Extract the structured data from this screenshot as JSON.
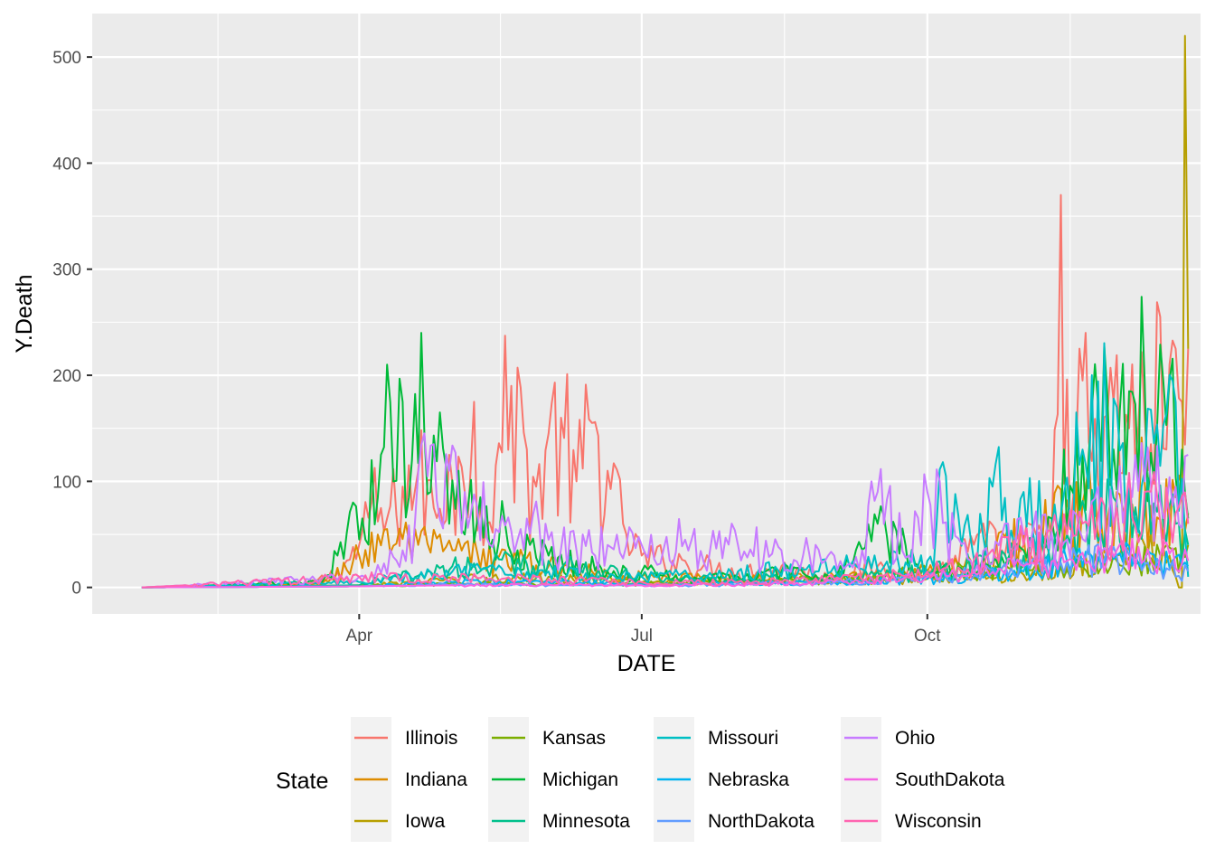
{
  "chart_data": {
    "type": "line",
    "xlabel": "DATE",
    "ylabel": "Y.Death",
    "x_ticks": [
      {
        "label": "Apr",
        "date": "2020-04-01"
      },
      {
        "label": "Jul",
        "date": "2020-07-01"
      },
      {
        "label": "Oct",
        "date": "2020-10-01"
      }
    ],
    "y_ticks": [
      0,
      100,
      200,
      300,
      400,
      500
    ],
    "xlim": [
      "2020-01-06",
      "2020-12-28"
    ],
    "ylim": [
      -25,
      541
    ],
    "x_start": "2020-01-22",
    "grid": true,
    "legend": {
      "title": "State",
      "position": "bottom",
      "entries": [
        "Illinois",
        "Indiana",
        "Iowa",
        "Kansas",
        "Michigan",
        "Minnesota",
        "Missouri",
        "Nebraska",
        "NorthDakota",
        "Ohio",
        "SouthDakota",
        "Wisconsin"
      ]
    },
    "colors": {
      "Illinois": "#F8766D",
      "Indiana": "#DE8C00",
      "Iowa": "#B79F00",
      "Kansas": "#7CAE00",
      "Michigan": "#00BA38",
      "Minnesota": "#00C08B",
      "Missouri": "#00BFC4",
      "Nebraska": "#00B4F0",
      "NorthDakota": "#619CFF",
      "Ohio": "#C77CFF",
      "SouthDakota": "#F564E3",
      "Wisconsin": "#FF64B0"
    },
    "series": [
      {
        "name": "Illinois",
        "x": [
          "2020-01-22",
          "2020-03-15",
          "2020-03-25",
          "2020-04-01",
          "2020-04-05",
          "2020-04-10",
          "2020-04-15",
          "2020-04-20",
          "2020-04-25",
          "2020-04-30",
          "2020-05-05",
          "2020-05-08",
          "2020-05-12",
          "2020-05-15",
          "2020-05-20",
          "2020-05-25",
          "2020-05-28",
          "2020-06-01",
          "2020-06-05",
          "2020-06-10",
          "2020-06-15",
          "2020-06-20",
          "2020-06-25",
          "2020-07-01",
          "2020-07-15",
          "2020-08-01",
          "2020-08-15",
          "2020-09-01",
          "2020-09-15",
          "2020-10-01",
          "2020-10-10",
          "2020-10-20",
          "2020-10-25",
          "2020-11-01",
          "2020-11-05",
          "2020-11-10",
          "2020-11-13",
          "2020-11-16",
          "2020-11-20",
          "2020-11-25",
          "2020-11-30",
          "2020-12-05",
          "2020-12-10",
          "2020-12-12",
          "2020-12-15",
          "2020-12-17",
          "2020-12-20",
          "2020-12-22",
          "2020-12-24"
        ],
        "y": [
          0,
          2,
          15,
          40,
          80,
          65,
          95,
          110,
          75,
          125,
          90,
          175,
          60,
          115,
          190,
          130,
          95,
          145,
          160,
          100,
          155,
          110,
          60,
          30,
          25,
          15,
          20,
          10,
          20,
          12,
          30,
          45,
          35,
          40,
          50,
          45,
          370,
          55,
          195,
          100,
          175,
          150,
          160,
          135,
          255,
          130,
          225,
          175,
          225
        ]
      },
      {
        "name": "Indiana",
        "x": [
          "2020-01-22",
          "2020-03-20",
          "2020-04-01",
          "2020-04-10",
          "2020-04-20",
          "2020-05-01",
          "2020-05-15",
          "2020-06-01",
          "2020-06-15",
          "2020-07-01",
          "2020-08-01",
          "2020-09-01",
          "2020-10-01",
          "2020-10-15",
          "2020-11-01",
          "2020-11-10",
          "2020-11-20",
          "2020-12-01",
          "2020-12-10",
          "2020-12-20",
          "2020-12-24"
        ],
        "y": [
          0,
          3,
          30,
          55,
          40,
          35,
          30,
          20,
          15,
          10,
          8,
          10,
          15,
          25,
          50,
          60,
          80,
          90,
          100,
          85,
          70
        ]
      },
      {
        "name": "Iowa",
        "x": [
          "2020-01-22",
          "2020-04-01",
          "2020-05-01",
          "2020-06-01",
          "2020-07-01",
          "2020-08-01",
          "2020-09-01",
          "2020-10-01",
          "2020-11-01",
          "2020-11-15",
          "2020-12-01",
          "2020-12-10",
          "2020-12-18",
          "2020-12-20",
          "2020-12-21",
          "2020-12-22",
          "2020-12-23",
          "2020-12-24"
        ],
        "y": [
          0,
          2,
          8,
          10,
          5,
          6,
          8,
          8,
          12,
          20,
          30,
          40,
          30,
          10,
          0,
          0,
          520,
          225
        ]
      },
      {
        "name": "Kansas",
        "x": [
          "2020-01-22",
          "2020-04-01",
          "2020-05-01",
          "2020-06-01",
          "2020-07-01",
          "2020-08-01",
          "2020-09-01",
          "2020-10-01",
          "2020-11-01",
          "2020-12-01",
          "2020-12-15",
          "2020-12-24"
        ],
        "y": [
          0,
          1,
          4,
          3,
          4,
          6,
          8,
          15,
          20,
          25,
          30,
          40
        ]
      },
      {
        "name": "Michigan",
        "x": [
          "2020-01-22",
          "2020-03-20",
          "2020-03-25",
          "2020-03-30",
          "2020-04-02",
          "2020-04-05",
          "2020-04-08",
          "2020-04-10",
          "2020-04-12",
          "2020-04-15",
          "2020-04-18",
          "2020-04-21",
          "2020-04-24",
          "2020-04-27",
          "2020-04-30",
          "2020-05-03",
          "2020-05-06",
          "2020-05-10",
          "2020-05-14",
          "2020-05-18",
          "2020-05-22",
          "2020-05-26",
          "2020-06-01",
          "2020-06-10",
          "2020-06-20",
          "2020-07-01",
          "2020-07-15",
          "2020-08-01",
          "2020-08-15",
          "2020-09-01",
          "2020-09-15",
          "2020-10-01",
          "2020-10-15",
          "2020-11-01",
          "2020-11-10",
          "2020-11-20",
          "2020-11-28",
          "2020-12-05",
          "2020-12-10",
          "2020-12-14",
          "2020-12-18",
          "2020-12-22",
          "2020-12-24"
        ],
        "y": [
          0,
          5,
          30,
          80,
          65,
          120,
          125,
          210,
          100,
          175,
          120,
          240,
          90,
          165,
          60,
          110,
          75,
          85,
          45,
          60,
          35,
          40,
          30,
          25,
          15,
          15,
          10,
          10,
          15,
          10,
          60,
          15,
          20,
          35,
          65,
          125,
          180,
          185,
          195,
          150,
          195,
          130,
          65
        ]
      },
      {
        "name": "Minnesota",
        "x": [
          "2020-01-22",
          "2020-04-01",
          "2020-05-01",
          "2020-06-01",
          "2020-07-01",
          "2020-08-01",
          "2020-09-01",
          "2020-10-01",
          "2020-11-01",
          "2020-11-15",
          "2020-12-01",
          "2020-12-10",
          "2020-12-20",
          "2020-12-24"
        ],
        "y": [
          0,
          2,
          20,
          25,
          10,
          8,
          10,
          15,
          30,
          50,
          80,
          70,
          60,
          40
        ]
      },
      {
        "name": "Missouri",
        "x": [
          "2020-01-22",
          "2020-04-01",
          "2020-05-01",
          "2020-06-01",
          "2020-07-01",
          "2020-08-01",
          "2020-09-01",
          "2020-10-01",
          "2020-10-07",
          "2020-10-15",
          "2020-10-22",
          "2020-11-01",
          "2020-11-10",
          "2020-11-20",
          "2020-12-01",
          "2020-12-10",
          "2020-12-20",
          "2020-12-24"
        ],
        "y": [
          0,
          5,
          15,
          15,
          10,
          15,
          20,
          25,
          105,
          45,
          95,
          90,
          55,
          130,
          170,
          110,
          175,
          10
        ]
      },
      {
        "name": "Nebraska",
        "x": [
          "2020-01-22",
          "2020-04-01",
          "2020-05-01",
          "2020-06-01",
          "2020-07-01",
          "2020-08-01",
          "2020-09-01",
          "2020-10-01",
          "2020-11-01",
          "2020-11-15",
          "2020-12-01",
          "2020-12-15",
          "2020-12-24"
        ],
        "y": [
          0,
          1,
          5,
          5,
          3,
          4,
          5,
          8,
          15,
          25,
          30,
          25,
          20
        ]
      },
      {
        "name": "NorthDakota",
        "x": [
          "2020-01-22",
          "2020-04-01",
          "2020-05-01",
          "2020-06-01",
          "2020-07-01",
          "2020-08-01",
          "2020-09-01",
          "2020-10-01",
          "2020-11-01",
          "2020-11-15",
          "2020-12-01",
          "2020-12-15",
          "2020-12-24"
        ],
        "y": [
          0,
          1,
          3,
          2,
          2,
          3,
          5,
          10,
          20,
          25,
          30,
          20,
          15
        ]
      },
      {
        "name": "Ohio",
        "x": [
          "2020-01-22",
          "2020-04-01",
          "2020-04-15",
          "2020-04-25",
          "2020-05-05",
          "2020-05-15",
          "2020-05-25",
          "2020-06-01",
          "2020-06-10",
          "2020-06-20",
          "2020-07-01",
          "2020-07-15",
          "2020-08-01",
          "2020-08-15",
          "2020-09-01",
          "2020-09-10",
          "2020-09-15",
          "2020-09-25",
          "2020-10-01",
          "2020-10-15",
          "2020-11-01",
          "2020-11-15",
          "2020-12-01",
          "2020-12-10",
          "2020-12-20",
          "2020-12-24"
        ],
        "y": [
          0,
          10,
          35,
          135,
          90,
          55,
          65,
          45,
          35,
          40,
          40,
          45,
          40,
          35,
          30,
          35,
          90,
          30,
          90,
          25,
          50,
          45,
          80,
          100,
          95,
          125
        ]
      },
      {
        "name": "SouthDakota",
        "x": [
          "2020-01-22",
          "2020-04-01",
          "2020-05-01",
          "2020-06-01",
          "2020-07-01",
          "2020-08-01",
          "2020-09-01",
          "2020-10-01",
          "2020-11-01",
          "2020-11-15",
          "2020-12-01",
          "2020-12-15",
          "2020-12-24"
        ],
        "y": [
          0,
          1,
          2,
          3,
          2,
          3,
          5,
          10,
          20,
          25,
          35,
          30,
          25
        ]
      },
      {
        "name": "Wisconsin",
        "x": [
          "2020-01-22",
          "2020-04-01",
          "2020-05-01",
          "2020-06-01",
          "2020-07-01",
          "2020-08-01",
          "2020-09-01",
          "2020-10-01",
          "2020-11-01",
          "2020-11-15",
          "2020-12-01",
          "2020-12-10",
          "2020-12-20",
          "2020-12-24"
        ],
        "y": [
          0,
          10,
          10,
          8,
          5,
          5,
          8,
          15,
          40,
          50,
          75,
          90,
          70,
          60
        ]
      }
    ]
  }
}
